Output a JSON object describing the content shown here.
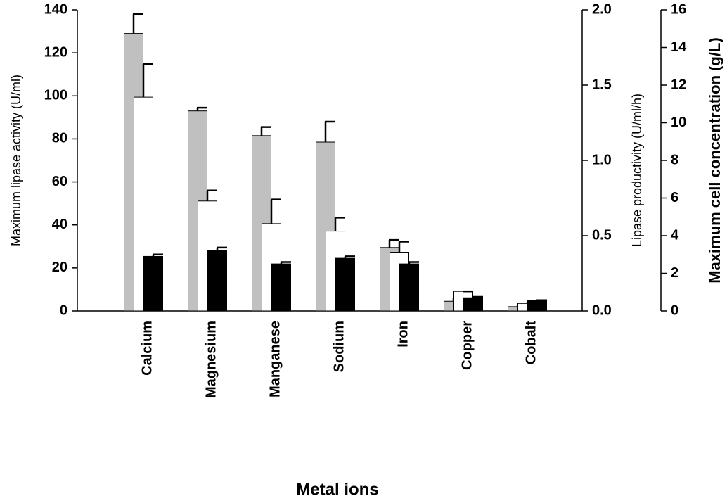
{
  "chart_data": {
    "type": "bar",
    "xlabel": "Metal ions",
    "ylabel": "Maximum lipase activity (U/ml)",
    "y2label": "Lipase productivity (U/ml/h)",
    "y3label": "Maximum cell concentration (g/L)",
    "categories": [
      "Calcium",
      "Magnesium",
      "Manganese",
      "Sodium",
      "Iron",
      "Copper",
      "Cobalt"
    ],
    "ylim": [
      0,
      140
    ],
    "yticks": [
      0,
      20,
      40,
      60,
      80,
      100,
      120,
      140
    ],
    "y2lim": [
      0,
      2
    ],
    "y2ticks": [
      {
        "value": 0,
        "label": "0.0"
      },
      0.5,
      {
        "value": 1,
        "label": "1.0"
      },
      1.5,
      {
        "value": 2,
        "label": "2.0"
      }
    ],
    "y3lim": [
      0,
      16
    ],
    "y3ticks": [
      0,
      2,
      4,
      6,
      8,
      10,
      12,
      14,
      16
    ],
    "series": [
      {
        "name": "Maximum lipase activity",
        "color": "#c0c0c0",
        "axis": "y",
        "values": [
          129,
          93,
          81.5,
          78.5,
          29.5,
          4.5,
          2
        ],
        "errors": [
          9,
          1.5,
          4,
          9.5,
          3.5,
          1.5,
          0.5
        ]
      },
      {
        "name": "Lipase productivity",
        "color": "#ffffff",
        "axis": "y2",
        "values": [
          1.42,
          0.73,
          0.58,
          0.53,
          0.39,
          0.13,
          0.05
        ],
        "errors": [
          0.22,
          0.07,
          0.16,
          0.09,
          0.07,
          0,
          0.01
        ]
      },
      {
        "name": "Maximum cell concentration",
        "color": "#000000",
        "axis": "y3",
        "values": [
          2.9,
          3.2,
          2.5,
          2.8,
          2.5,
          0.7,
          0.57
        ],
        "errors": [
          0.1,
          0.17,
          0.1,
          0.1,
          0.1,
          0.05,
          0
        ]
      }
    ]
  }
}
